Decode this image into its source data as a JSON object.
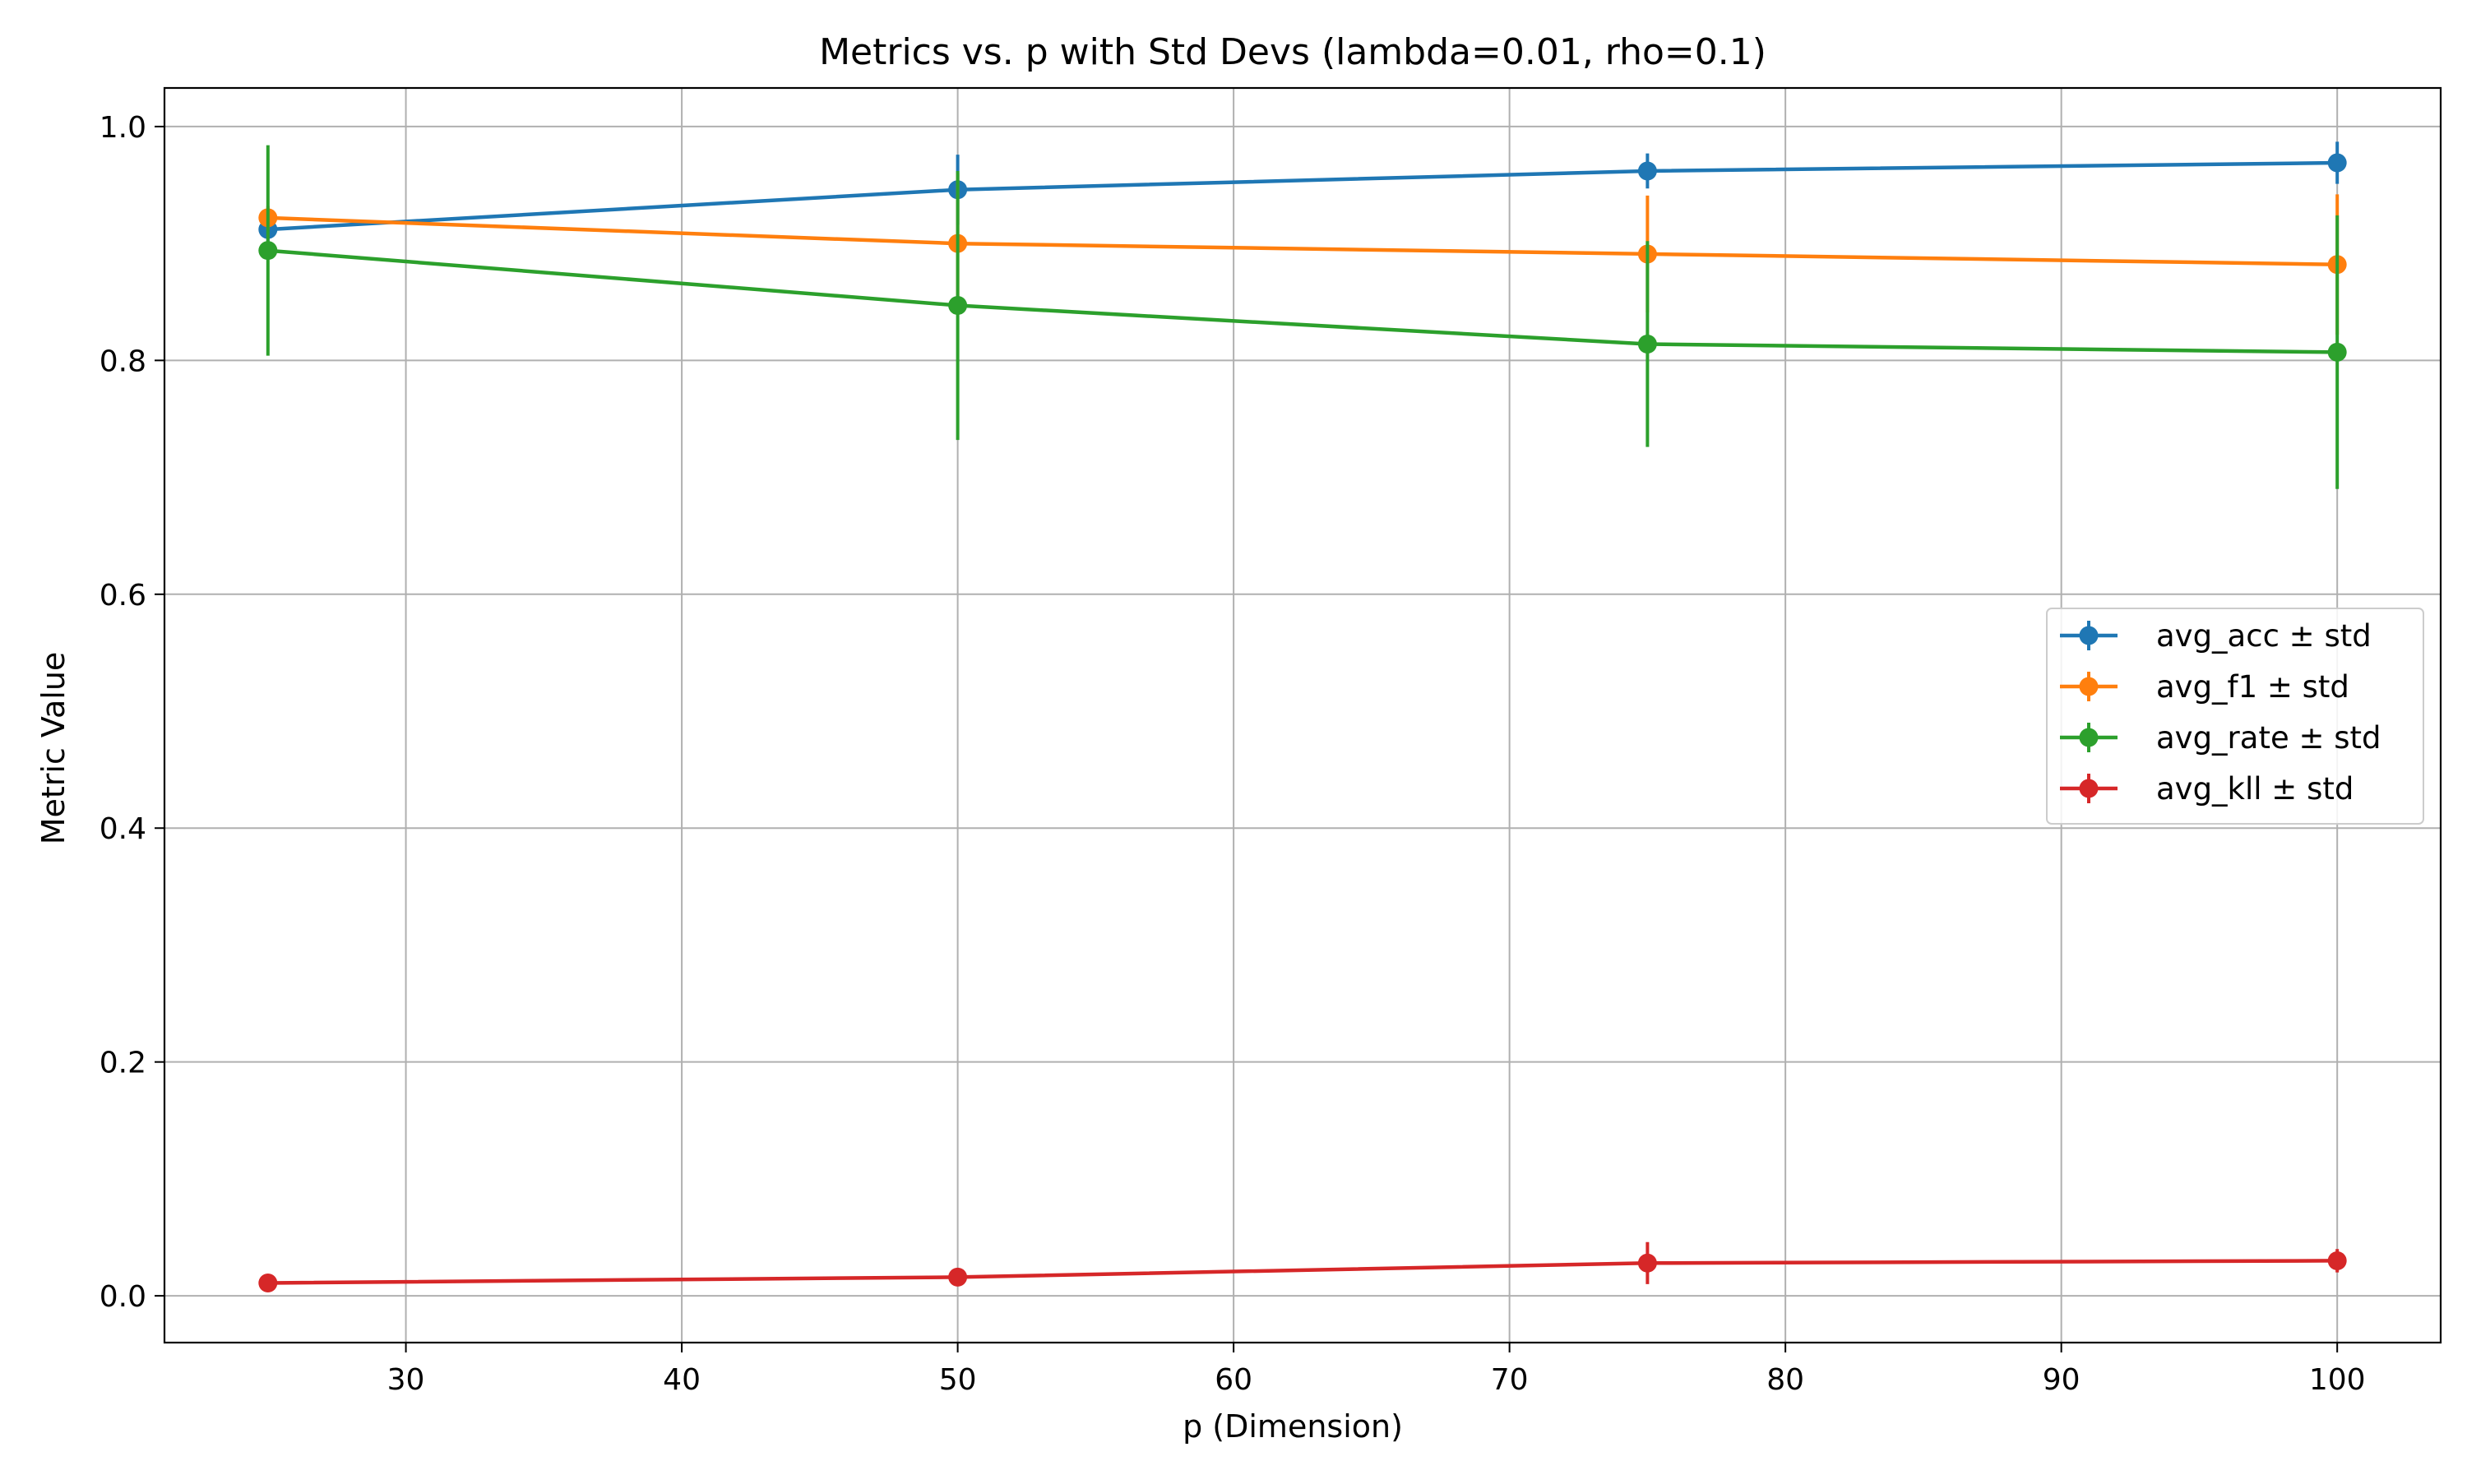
{
  "chart_data": {
    "type": "line",
    "title": "Metrics vs. p with Std Devs (lambda=0.01, rho=0.1)",
    "xlabel": "p (Dimension)",
    "ylabel": "Metric Value",
    "xlim": [
      21.25,
      103.75
    ],
    "ylim": [
      -0.04,
      1.033
    ],
    "xticks": [
      30,
      40,
      50,
      60,
      70,
      80,
      90,
      100
    ],
    "yticks": [
      0.0,
      0.2,
      0.4,
      0.6,
      0.8,
      1.0
    ],
    "xtick_labels": [
      "30",
      "40",
      "50",
      "60",
      "70",
      "80",
      "90",
      "100"
    ],
    "ytick_labels": [
      "0.0",
      "0.2",
      "0.4",
      "0.6",
      "0.8",
      "1.0"
    ],
    "grid": true,
    "legend_position": "center-right",
    "x": [
      25,
      50,
      75,
      100
    ],
    "series": [
      {
        "name": "avg_acc ± std",
        "color": "#1f77b4",
        "values": [
          0.912,
          0.946,
          0.962,
          0.969
        ],
        "std": [
          0.01,
          0.03,
          0.015,
          0.018
        ]
      },
      {
        "name": "avg_f1 ± std",
        "color": "#ff7f0e",
        "values": [
          0.922,
          0.9,
          0.891,
          0.882
        ],
        "std": [
          0.01,
          0.06,
          0.05,
          0.06
        ]
      },
      {
        "name": "avg_rate ± std",
        "color": "#2ca02c",
        "values": [
          0.894,
          0.847,
          0.814,
          0.807
        ],
        "std": [
          0.09,
          0.115,
          0.088,
          0.117
        ]
      },
      {
        "name": "avg_kll ± std",
        "color": "#d62728",
        "values": [
          0.011,
          0.016,
          0.028,
          0.03
        ],
        "std": [
          0.004,
          0.005,
          0.018,
          0.01
        ]
      }
    ]
  }
}
